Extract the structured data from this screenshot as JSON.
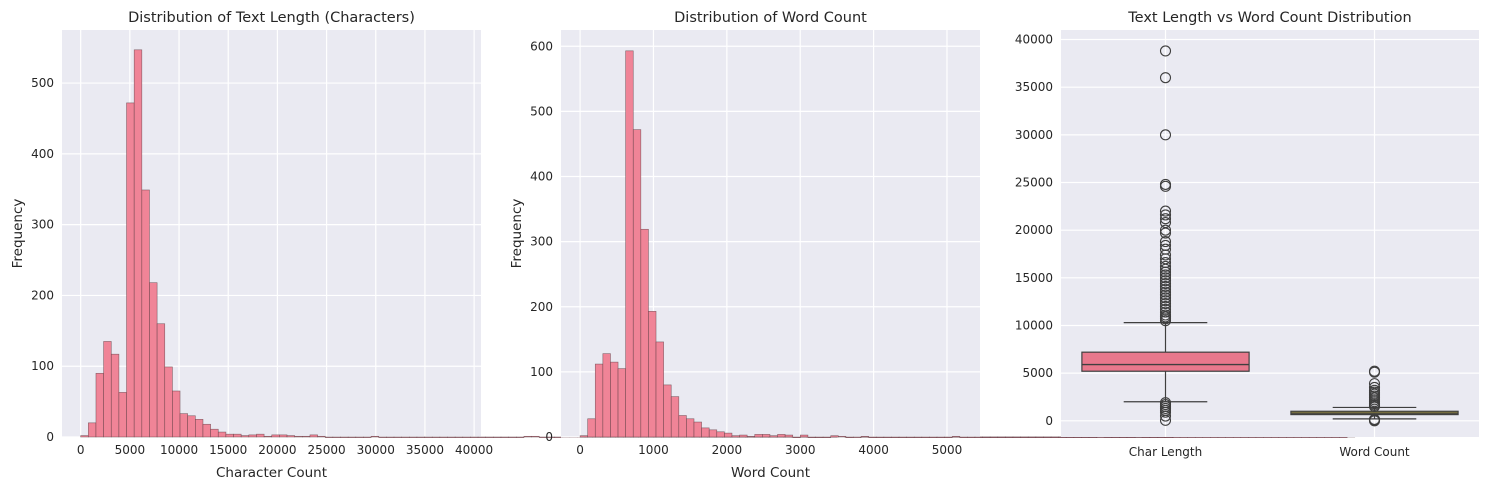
{
  "colors": {
    "panel_bg": "#eaeaf2",
    "grid": "#ffffff",
    "bar": "#f08497",
    "box_char": "#e8788c",
    "box_word": "#a89a40",
    "text": "#262626"
  },
  "chart_data": [
    {
      "type": "bar",
      "title": "Distribution of Text Length (Characters)",
      "xlabel": "Character Count",
      "ylabel": "Frequency",
      "xlim": [
        -1900,
        40700
      ],
      "ylim": [
        0,
        575
      ],
      "xticks": [
        0,
        5000,
        10000,
        15000,
        20000,
        25000,
        30000,
        35000,
        40000
      ],
      "xtick_labels": [
        "0",
        "5000",
        "10000",
        "15000",
        "20000",
        "25000",
        "30000",
        "35000",
        "40000"
      ],
      "yticks": [
        0,
        100,
        200,
        300,
        400,
        500
      ],
      "ytick_labels": [
        "0",
        "100",
        "200",
        "300",
        "400",
        "500"
      ],
      "bin_start": 0,
      "bin_width": 777,
      "values": [
        2,
        20,
        90,
        135,
        117,
        63,
        472,
        547,
        349,
        218,
        160,
        99,
        65,
        33,
        30,
        25,
        18,
        11,
        7,
        4,
        4,
        2,
        3,
        4,
        1,
        3,
        3,
        2,
        1,
        1,
        3,
        1,
        0,
        0,
        0,
        0,
        0,
        0,
        1,
        0,
        0,
        0,
        0,
        0,
        0,
        0,
        0,
        0,
        0,
        0,
        0,
        0,
        0,
        0,
        0,
        0,
        0,
        0,
        1,
        1,
        0,
        0,
        0,
        0,
        0,
        0,
        0,
        0,
        0,
        0,
        0,
        0,
        0,
        0,
        0,
        0,
        0,
        0,
        0,
        0,
        0,
        0,
        0,
        0,
        0,
        0,
        0,
        0,
        0,
        0,
        0,
        0,
        0,
        0,
        0,
        0,
        0,
        0,
        0,
        1,
        0,
        1,
        0,
        0,
        0,
        0,
        0,
        0,
        0,
        0,
        0,
        0,
        0,
        0,
        0,
        0,
        0,
        0,
        0,
        0,
        0,
        0,
        0,
        0,
        0,
        0,
        0,
        0,
        0,
        0,
        0,
        0,
        0,
        1,
        0,
        0,
        0,
        0,
        0,
        0,
        0,
        0,
        0,
        1
      ]
    },
    {
      "type": "bar",
      "title": "Distribution of Word Count",
      "xlabel": "Word Count",
      "ylabel": "Frequency",
      "xlim": [
        -260,
        5450
      ],
      "ylim": [
        0,
        625
      ],
      "xticks": [
        0,
        1000,
        2000,
        3000,
        4000,
        5000
      ],
      "xtick_labels": [
        "0",
        "1000",
        "2000",
        "3000",
        "4000",
        "5000"
      ],
      "yticks": [
        0,
        100,
        200,
        300,
        400,
        500,
        600
      ],
      "ytick_labels": [
        "0",
        "100",
        "200",
        "300",
        "400",
        "500",
        "600"
      ],
      "bin_start": 0,
      "bin_width": 103.5,
      "values": [
        2,
        28,
        112,
        128,
        115,
        105,
        593,
        472,
        319,
        193,
        146,
        80,
        62,
        33,
        28,
        23,
        14,
        11,
        8,
        6,
        2,
        3,
        1,
        4,
        4,
        2,
        4,
        3,
        0,
        3,
        0,
        0,
        0,
        2,
        1,
        0,
        0,
        1,
        0,
        0,
        0,
        0,
        0,
        0,
        0,
        0,
        0,
        0,
        0,
        1,
        0,
        0,
        0,
        0,
        0,
        0,
        0,
        0,
        0,
        0,
        0,
        0,
        0,
        0,
        0,
        0,
        0,
        0,
        0,
        0,
        0,
        0,
        0,
        1,
        0,
        0,
        0,
        0,
        0,
        0,
        0,
        0,
        0,
        0,
        0,
        0,
        0,
        0,
        0,
        0,
        0,
        0,
        0,
        0,
        0,
        0,
        0,
        0,
        0,
        0,
        0,
        1
      ]
    },
    {
      "type": "box",
      "title": "Text Length vs Word Count Distribution",
      "categories": [
        "Char Length",
        "Word Count"
      ],
      "ylim": [
        -1700,
        41000
      ],
      "yticks": [
        0,
        5000,
        10000,
        15000,
        20000,
        25000,
        30000,
        35000,
        40000
      ],
      "ytick_labels": [
        "0",
        "5000",
        "10000",
        "15000",
        "20000",
        "25000",
        "30000",
        "35000",
        "40000"
      ],
      "boxes": [
        {
          "name": "Char Length",
          "whisker_low": 2000,
          "q1": 5200,
          "median": 5900,
          "q3": 7200,
          "whisker_high": 10300,
          "outliers": [
            38800,
            36000,
            30000,
            24800,
            24600,
            22000,
            21600,
            21200,
            20800,
            20000,
            19700,
            18800,
            18400,
            18000,
            17400,
            17000,
            16600,
            16200,
            15900,
            15600,
            15300,
            15000,
            14700,
            14400,
            14100,
            13800,
            13500,
            13200,
            12900,
            12600,
            12300,
            12000,
            11700,
            11400,
            11100,
            10900,
            10700,
            10500,
            1900,
            1700,
            1500,
            1300,
            1100,
            900,
            500,
            50
          ]
        },
        {
          "name": "Word Count",
          "whisker_low": 200,
          "q1": 650,
          "median": 800,
          "q3": 1000,
          "whisker_high": 1400,
          "outliers": [
            5200,
            5100,
            3900,
            3500,
            3200,
            3000,
            2800,
            2600,
            2400,
            2200,
            2000,
            1800,
            1650,
            1500,
            150,
            100,
            50,
            0
          ]
        }
      ]
    }
  ]
}
